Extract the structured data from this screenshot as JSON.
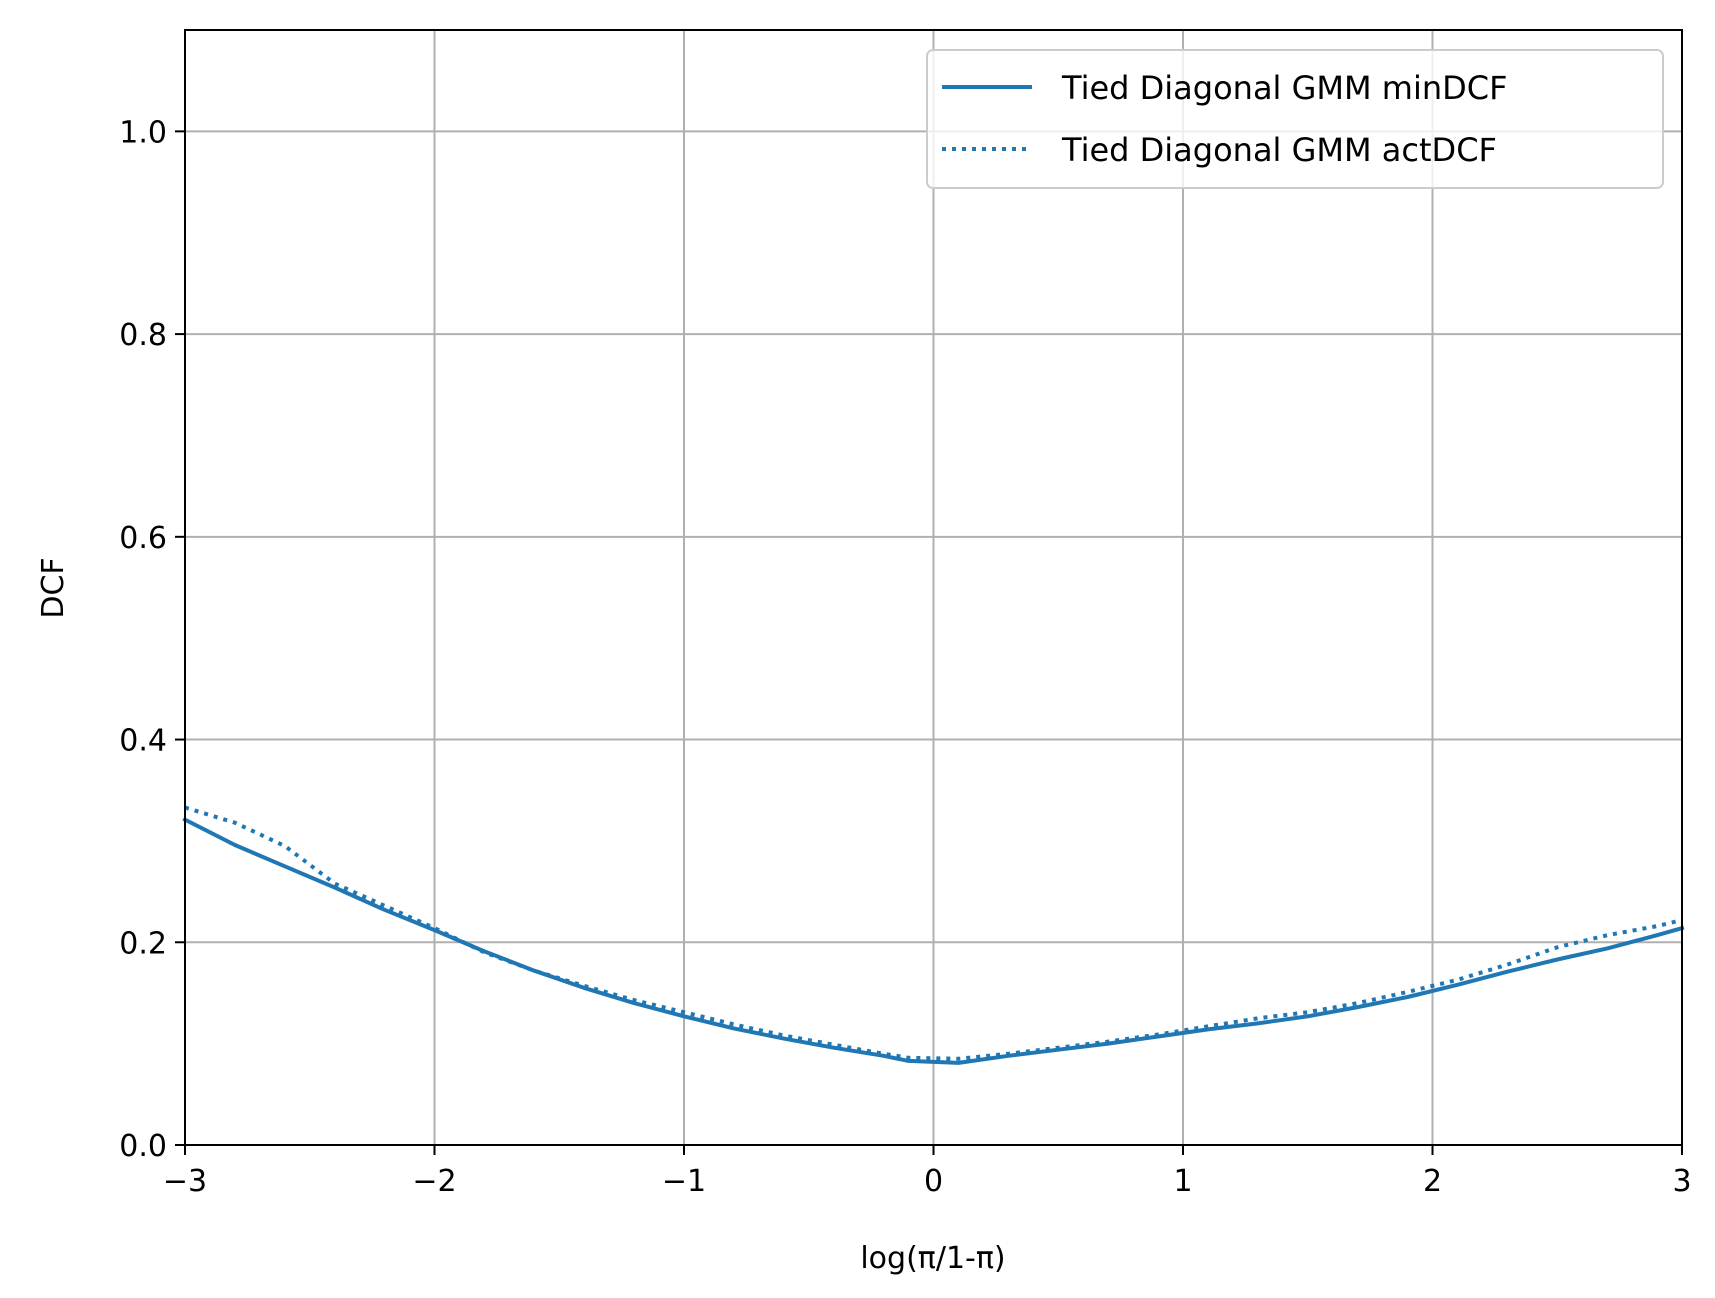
{
  "chart_data": {
    "type": "line",
    "xlabel": "log(π/1-π)",
    "ylabel": "DCF",
    "xlim": [
      -3,
      3
    ],
    "ylim": [
      0,
      1.1
    ],
    "x_ticks": [
      -3,
      -2,
      -1,
      0,
      1,
      2,
      3
    ],
    "x_tick_labels": [
      "−3",
      "−2",
      "−1",
      "0",
      "1",
      "2",
      "3"
    ],
    "y_ticks": [
      0.0,
      0.2,
      0.4,
      0.6,
      0.8,
      1.0
    ],
    "y_tick_labels": [
      "0.0",
      "0.2",
      "0.4",
      "0.6",
      "0.8",
      "1.0"
    ],
    "grid": true,
    "legend_position": "top-right",
    "series": [
      {
        "name": "Tied Diagonal GMM minDCF",
        "style": "solid",
        "color": "#1f77b4",
        "x": [
          -3.0,
          -2.8,
          -2.6,
          -2.4,
          -2.2,
          -2.0,
          -1.8,
          -1.6,
          -1.4,
          -1.2,
          -1.0,
          -0.8,
          -0.6,
          -0.4,
          -0.2,
          -0.1,
          0.1,
          0.3,
          0.5,
          0.7,
          0.9,
          1.1,
          1.3,
          1.5,
          1.7,
          1.9,
          2.1,
          2.3,
          2.5,
          2.7,
          2.9,
          3.0
        ],
        "y": [
          0.321,
          0.296,
          0.275,
          0.254,
          0.232,
          0.212,
          0.191,
          0.172,
          0.155,
          0.14,
          0.127,
          0.115,
          0.105,
          0.096,
          0.088,
          0.083,
          0.081,
          0.088,
          0.094,
          0.1,
          0.107,
          0.114,
          0.12,
          0.127,
          0.136,
          0.146,
          0.158,
          0.171,
          0.183,
          0.194,
          0.207,
          0.214
        ]
      },
      {
        "name": "Tied Diagonal GMM actDCF",
        "style": "dotted",
        "color": "#1f77b4",
        "x": [
          -3.0,
          -2.8,
          -2.6,
          -2.4,
          -2.2,
          -2.0,
          -1.8,
          -1.6,
          -1.4,
          -1.2,
          -1.0,
          -0.8,
          -0.6,
          -0.4,
          -0.2,
          -0.1,
          0.1,
          0.3,
          0.5,
          0.7,
          0.9,
          1.1,
          1.3,
          1.5,
          1.7,
          1.9,
          2.1,
          2.3,
          2.5,
          2.7,
          2.9,
          3.0
        ],
        "y": [
          0.333,
          0.318,
          0.295,
          0.258,
          0.236,
          0.214,
          0.19,
          0.172,
          0.157,
          0.143,
          0.131,
          0.119,
          0.108,
          0.099,
          0.09,
          0.086,
          0.085,
          0.09,
          0.096,
          0.102,
          0.109,
          0.117,
          0.125,
          0.131,
          0.14,
          0.151,
          0.163,
          0.178,
          0.195,
          0.207,
          0.216,
          0.222
        ]
      }
    ]
  }
}
